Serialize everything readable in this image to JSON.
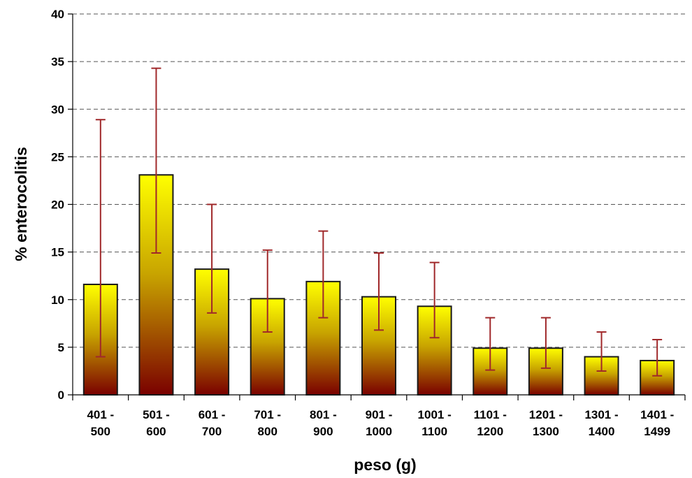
{
  "chart_data": {
    "type": "bar",
    "title": "",
    "xlabel": "peso (g)",
    "ylabel": "% enterocolitis",
    "ylim": [
      0,
      40
    ],
    "yticks": [
      0,
      5,
      10,
      15,
      20,
      25,
      30,
      35,
      40
    ],
    "grid": true,
    "legend": "none",
    "categories": [
      [
        "401 -",
        "500"
      ],
      [
        "501 -",
        "600"
      ],
      [
        "601 -",
        "700"
      ],
      [
        "701 -",
        "800"
      ],
      [
        "801 -",
        "900"
      ],
      [
        "901 -",
        "1000"
      ],
      [
        "1001 -",
        "1100"
      ],
      [
        "1101 -",
        "1200"
      ],
      [
        "1201 -",
        "1300"
      ],
      [
        "1301 -",
        "1400"
      ],
      [
        "1401 -",
        "1499"
      ]
    ],
    "values": [
      11.6,
      23.1,
      13.2,
      10.1,
      11.9,
      10.3,
      9.3,
      4.9,
      4.9,
      4.0,
      3.6
    ],
    "error_low": [
      4.0,
      14.9,
      8.6,
      6.6,
      8.1,
      6.8,
      6.0,
      2.6,
      2.8,
      2.5,
      2.0
    ],
    "error_high": [
      28.9,
      34.3,
      20.0,
      15.2,
      17.2,
      14.9,
      13.9,
      8.1,
      8.1,
      6.6,
      5.8
    ],
    "colors": {
      "bar_top": "#ffff00",
      "bar_mid": "#c8a400",
      "bar_bottom": "#7a0000",
      "bar_outline": "#1a1a1a",
      "error_bar": "#a0282a",
      "grid": "#555555",
      "axis": "#000000"
    }
  }
}
